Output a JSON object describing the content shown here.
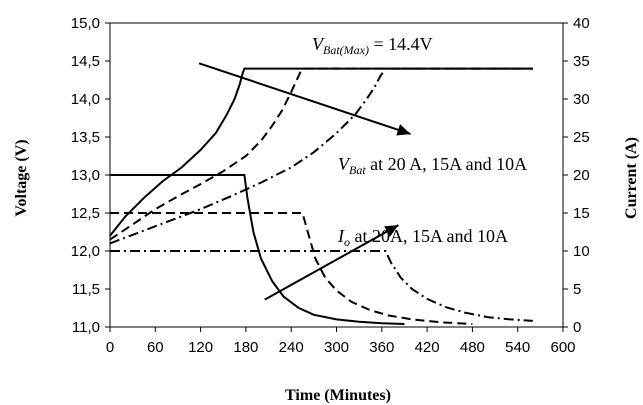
{
  "chart_data": {
    "type": "line",
    "xlabel": "Time (Minutes)",
    "ylabel_left": "Voltage (V)",
    "ylabel_right": "Current (A)",
    "xlim": [
      0,
      600
    ],
    "ylim_left": [
      11.0,
      15.0
    ],
    "ylim_right": [
      0,
      40
    ],
    "x_ticks": [
      "0",
      "60",
      "120",
      "180",
      "240",
      "300",
      "360",
      "420",
      "480",
      "540",
      "600"
    ],
    "y_left_ticks": [
      "11,0",
      "11,5",
      "12,0",
      "12,5",
      "13,0",
      "13,5",
      "14,0",
      "14,5",
      "15,0"
    ],
    "y_right_ticks": [
      "0",
      "5",
      "10",
      "15",
      "20",
      "25",
      "30",
      "35",
      "40"
    ],
    "grid": false,
    "annotations": {
      "vmax_prefix": "V",
      "vmax_sub": "Bat(Max)",
      "vmax_suffix": " = 14.4V",
      "vbat_prefix": "V",
      "vbat_sub": "Bat",
      "vbat_suffix": " at 20 A, 15A and 10A",
      "io_prefix": "I",
      "io_sub": "o",
      "io_suffix": " at 20A, 15A and 10A"
    },
    "series": [
      {
        "quantity": "voltage",
        "axis": "left",
        "style": "solid",
        "x": [
          0,
          20,
          45,
          70,
          95,
          120,
          140,
          155,
          165,
          172,
          176,
          178,
          200,
          250,
          300,
          360,
          420,
          480,
          560
        ],
        "y": [
          12.2,
          12.45,
          12.7,
          12.92,
          13.1,
          13.33,
          13.55,
          13.8,
          14.0,
          14.2,
          14.35,
          14.4,
          14.4,
          14.4,
          14.4,
          14.4,
          14.4,
          14.4,
          14.4
        ]
      },
      {
        "quantity": "voltage",
        "axis": "left",
        "style": "dashed",
        "x": [
          0,
          30,
          60,
          90,
          120,
          150,
          180,
          200,
          215,
          228,
          238,
          245,
          252,
          256,
          280,
          360,
          420,
          480,
          560
        ],
        "y": [
          12.15,
          12.35,
          12.55,
          12.72,
          12.88,
          13.05,
          13.25,
          13.45,
          13.65,
          13.85,
          14.05,
          14.2,
          14.35,
          14.4,
          14.4,
          14.4,
          14.4,
          14.4,
          14.4
        ]
      },
      {
        "quantity": "voltage",
        "axis": "left",
        "style": "dash-dot",
        "x": [
          0,
          40,
          80,
          120,
          160,
          200,
          240,
          270,
          300,
          325,
          340,
          350,
          358,
          365,
          420,
          480,
          560
        ],
        "y": [
          12.1,
          12.25,
          12.4,
          12.55,
          12.72,
          12.9,
          13.1,
          13.3,
          13.55,
          13.8,
          14.0,
          14.15,
          14.3,
          14.4,
          14.4,
          14.4,
          14.4
        ]
      },
      {
        "quantity": "current",
        "axis": "right",
        "style": "solid",
        "x": [
          0,
          60,
          120,
          178,
          182,
          190,
          200,
          215,
          230,
          250,
          270,
          300,
          330,
          360,
          390
        ],
        "y": [
          20,
          20,
          20,
          20,
          17,
          12.5,
          9,
          6,
          4,
          2.5,
          1.6,
          1.0,
          0.7,
          0.5,
          0.4
        ]
      },
      {
        "quantity": "current",
        "axis": "right",
        "style": "dashed",
        "x": [
          0,
          80,
          160,
          255,
          262,
          272,
          285,
          300,
          320,
          345,
          370,
          400,
          440,
          480
        ],
        "y": [
          15,
          15,
          15,
          15,
          12.5,
          9,
          6.5,
          4.8,
          3.3,
          2.2,
          1.5,
          1.0,
          0.6,
          0.4
        ]
      },
      {
        "quantity": "current",
        "axis": "right",
        "style": "dash-dot",
        "x": [
          0,
          100,
          200,
          300,
          365,
          372,
          385,
          400,
          420,
          445,
          470,
          500,
          530,
          560
        ],
        "y": [
          10,
          10,
          10,
          10,
          10,
          8.5,
          6.5,
          5.0,
          3.7,
          2.6,
          1.9,
          1.3,
          1.0,
          0.8
        ]
      }
    ]
  }
}
